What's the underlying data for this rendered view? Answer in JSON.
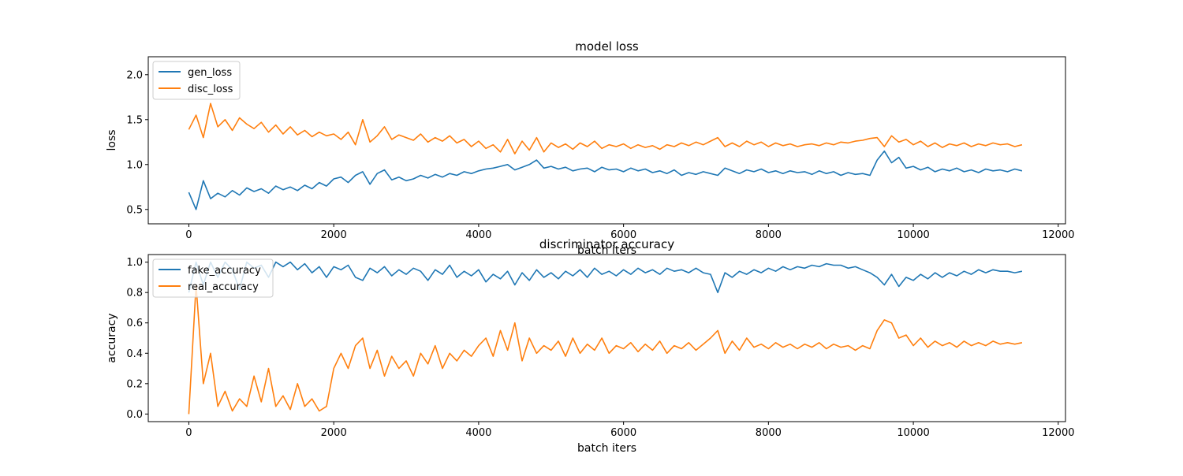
{
  "chart_data": [
    {
      "type": "line",
      "title": "model loss",
      "xlabel": "batch iters",
      "ylabel": "loss",
      "xlim": [
        -560,
        12100
      ],
      "ylim": [
        0.34,
        2.2
      ],
      "xticks": [
        0,
        2000,
        4000,
        6000,
        8000,
        10000,
        12000
      ],
      "yticks": [
        0.5,
        1.0,
        1.5,
        2.0
      ],
      "xtick_labels": [
        "0",
        "2000",
        "4000",
        "6000",
        "8000",
        "10000",
        "12000"
      ],
      "ytick_labels": [
        "0.5",
        "1.0",
        "1.5",
        "2.0"
      ],
      "grid": false,
      "legend": "upper left",
      "series": [
        {
          "name": "gen_loss",
          "color": "#1f77b4",
          "x": [
            0,
            100,
            200,
            300,
            400,
            500,
            600,
            700,
            800,
            900,
            1000,
            1100,
            1200,
            1300,
            1400,
            1500,
            1600,
            1700,
            1800,
            1900,
            2000,
            2100,
            2200,
            2300,
            2400,
            2500,
            2600,
            2700,
            2800,
            2900,
            3000,
            3100,
            3200,
            3300,
            3400,
            3500,
            3600,
            3700,
            3800,
            3900,
            4000,
            4100,
            4200,
            4300,
            4400,
            4500,
            4600,
            4700,
            4800,
            4900,
            5000,
            5100,
            5200,
            5300,
            5400,
            5500,
            5600,
            5700,
            5800,
            5900,
            6000,
            6100,
            6200,
            6300,
            6400,
            6500,
            6600,
            6700,
            6800,
            6900,
            7000,
            7100,
            7200,
            7300,
            7400,
            7500,
            7600,
            7700,
            7800,
            7900,
            8000,
            8100,
            8200,
            8300,
            8400,
            8500,
            8600,
            8700,
            8800,
            8900,
            9000,
            9100,
            9200,
            9300,
            9400,
            9500,
            9600,
            9700,
            9800,
            9900,
            10000,
            10100,
            10200,
            10300,
            10400,
            10500,
            10600,
            10700,
            10800,
            10900,
            11000,
            11100,
            11200,
            11300,
            11400,
            11500
          ],
          "y": [
            0.69,
            0.5,
            0.82,
            0.62,
            0.68,
            0.64,
            0.71,
            0.66,
            0.74,
            0.7,
            0.73,
            0.68,
            0.76,
            0.72,
            0.75,
            0.71,
            0.77,
            0.73,
            0.8,
            0.76,
            0.84,
            0.86,
            0.8,
            0.88,
            0.92,
            0.78,
            0.9,
            0.94,
            0.83,
            0.86,
            0.82,
            0.84,
            0.88,
            0.85,
            0.89,
            0.86,
            0.9,
            0.88,
            0.92,
            0.9,
            0.93,
            0.95,
            0.96,
            0.98,
            1.0,
            0.94,
            0.97,
            1.0,
            1.05,
            0.96,
            0.98,
            0.95,
            0.97,
            0.93,
            0.95,
            0.96,
            0.92,
            0.97,
            0.94,
            0.95,
            0.92,
            0.96,
            0.93,
            0.95,
            0.91,
            0.93,
            0.9,
            0.94,
            0.88,
            0.91,
            0.89,
            0.92,
            0.9,
            0.88,
            0.96,
            0.93,
            0.9,
            0.94,
            0.92,
            0.95,
            0.91,
            0.93,
            0.9,
            0.93,
            0.91,
            0.92,
            0.89,
            0.93,
            0.9,
            0.92,
            0.88,
            0.91,
            0.89,
            0.9,
            0.88,
            1.05,
            1.15,
            1.02,
            1.08,
            0.96,
            0.98,
            0.94,
            0.97,
            0.92,
            0.95,
            0.93,
            0.96,
            0.92,
            0.94,
            0.91,
            0.95,
            0.93,
            0.94,
            0.92,
            0.95,
            0.93
          ]
        },
        {
          "name": "disc_loss",
          "color": "#ff7f0e",
          "x": [
            0,
            100,
            200,
            300,
            400,
            500,
            600,
            700,
            800,
            900,
            1000,
            1100,
            1200,
            1300,
            1400,
            1500,
            1600,
            1700,
            1800,
            1900,
            2000,
            2100,
            2200,
            2300,
            2400,
            2500,
            2600,
            2700,
            2800,
            2900,
            3000,
            3100,
            3200,
            3300,
            3400,
            3500,
            3600,
            3700,
            3800,
            3900,
            4000,
            4100,
            4200,
            4300,
            4400,
            4500,
            4600,
            4700,
            4800,
            4900,
            5000,
            5100,
            5200,
            5300,
            5400,
            5500,
            5600,
            5700,
            5800,
            5900,
            6000,
            6100,
            6200,
            6300,
            6400,
            6500,
            6600,
            6700,
            6800,
            6900,
            7000,
            7100,
            7200,
            7300,
            7400,
            7500,
            7600,
            7700,
            7800,
            7900,
            8000,
            8100,
            8200,
            8300,
            8400,
            8500,
            8600,
            8700,
            8800,
            8900,
            9000,
            9100,
            9200,
            9300,
            9400,
            9500,
            9600,
            9700,
            9800,
            9900,
            10000,
            10100,
            10200,
            10300,
            10400,
            10500,
            10600,
            10700,
            10800,
            10900,
            11000,
            11100,
            11200,
            11300,
            11400,
            11500
          ],
          "y": [
            1.39,
            1.55,
            1.3,
            1.68,
            1.42,
            1.5,
            1.38,
            1.52,
            1.45,
            1.4,
            1.47,
            1.36,
            1.44,
            1.34,
            1.42,
            1.33,
            1.38,
            1.31,
            1.36,
            1.32,
            1.34,
            1.28,
            1.36,
            1.22,
            1.5,
            1.25,
            1.32,
            1.42,
            1.28,
            1.33,
            1.3,
            1.27,
            1.34,
            1.25,
            1.3,
            1.26,
            1.32,
            1.24,
            1.28,
            1.2,
            1.26,
            1.18,
            1.22,
            1.14,
            1.28,
            1.12,
            1.26,
            1.16,
            1.3,
            1.14,
            1.24,
            1.19,
            1.23,
            1.17,
            1.24,
            1.2,
            1.26,
            1.18,
            1.22,
            1.2,
            1.23,
            1.18,
            1.22,
            1.19,
            1.21,
            1.17,
            1.22,
            1.2,
            1.24,
            1.21,
            1.25,
            1.22,
            1.26,
            1.3,
            1.2,
            1.24,
            1.2,
            1.26,
            1.22,
            1.25,
            1.2,
            1.24,
            1.21,
            1.23,
            1.2,
            1.22,
            1.23,
            1.21,
            1.24,
            1.22,
            1.25,
            1.24,
            1.26,
            1.27,
            1.29,
            1.3,
            1.2,
            1.32,
            1.25,
            1.28,
            1.22,
            1.26,
            1.2,
            1.24,
            1.19,
            1.23,
            1.21,
            1.24,
            1.2,
            1.23,
            1.21,
            1.24,
            1.22,
            1.23,
            1.2,
            1.22
          ]
        }
      ]
    },
    {
      "type": "line",
      "title": "discriminator accuracy",
      "xlabel": "batch iters",
      "ylabel": "accuracy",
      "xlim": [
        -560,
        12100
      ],
      "ylim": [
        -0.05,
        1.05
      ],
      "xticks": [
        0,
        2000,
        4000,
        6000,
        8000,
        10000,
        12000
      ],
      "yticks": [
        0.0,
        0.2,
        0.4,
        0.6,
        0.8,
        1.0
      ],
      "xtick_labels": [
        "0",
        "2000",
        "4000",
        "6000",
        "8000",
        "10000",
        "12000"
      ],
      "ytick_labels": [
        "0.0",
        "0.2",
        "0.4",
        "0.6",
        "0.8",
        "1.0"
      ],
      "grid": false,
      "legend": "upper left",
      "series": [
        {
          "name": "fake_accuracy",
          "color": "#1f77b4",
          "x": [
            0,
            100,
            200,
            300,
            400,
            500,
            600,
            700,
            800,
            900,
            1000,
            1100,
            1200,
            1300,
            1400,
            1500,
            1600,
            1700,
            1800,
            1900,
            2000,
            2100,
            2200,
            2300,
            2400,
            2500,
            2600,
            2700,
            2800,
            2900,
            3000,
            3100,
            3200,
            3300,
            3400,
            3500,
            3600,
            3700,
            3800,
            3900,
            4000,
            4100,
            4200,
            4300,
            4400,
            4500,
            4600,
            4700,
            4800,
            4900,
            5000,
            5100,
            5200,
            5300,
            5400,
            5500,
            5600,
            5700,
            5800,
            5900,
            6000,
            6100,
            6200,
            6300,
            6400,
            6500,
            6600,
            6700,
            6800,
            6900,
            7000,
            7100,
            7200,
            7300,
            7400,
            7500,
            7600,
            7700,
            7800,
            7900,
            8000,
            8100,
            8200,
            8300,
            8400,
            8500,
            8600,
            8700,
            8800,
            8900,
            9000,
            9100,
            9200,
            9300,
            9400,
            9500,
            9600,
            9700,
            9800,
            9900,
            10000,
            10100,
            10200,
            10300,
            10400,
            10500,
            10600,
            10700,
            10800,
            10900,
            11000,
            11100,
            11200,
            11300,
            11400,
            11500
          ],
          "y": [
            0.8,
            1.0,
            0.85,
            1.0,
            0.9,
            1.0,
            0.95,
            0.82,
            1.0,
            0.96,
            0.98,
            0.9,
            1.0,
            0.97,
            1.0,
            0.95,
            0.99,
            0.93,
            0.97,
            0.9,
            0.97,
            0.95,
            0.98,
            0.9,
            0.88,
            0.96,
            0.93,
            0.97,
            0.91,
            0.95,
            0.92,
            0.96,
            0.94,
            0.88,
            0.95,
            0.92,
            0.98,
            0.9,
            0.94,
            0.91,
            0.95,
            0.87,
            0.92,
            0.89,
            0.94,
            0.85,
            0.93,
            0.88,
            0.95,
            0.9,
            0.93,
            0.89,
            0.94,
            0.91,
            0.95,
            0.9,
            0.96,
            0.92,
            0.94,
            0.91,
            0.95,
            0.92,
            0.96,
            0.93,
            0.95,
            0.92,
            0.96,
            0.94,
            0.95,
            0.93,
            0.96,
            0.93,
            0.92,
            0.8,
            0.93,
            0.9,
            0.94,
            0.92,
            0.95,
            0.93,
            0.96,
            0.94,
            0.97,
            0.95,
            0.97,
            0.96,
            0.98,
            0.97,
            0.99,
            0.98,
            0.98,
            0.96,
            0.97,
            0.95,
            0.93,
            0.9,
            0.85,
            0.92,
            0.84,
            0.9,
            0.88,
            0.92,
            0.89,
            0.93,
            0.9,
            0.93,
            0.91,
            0.94,
            0.92,
            0.95,
            0.93,
            0.95,
            0.94,
            0.94,
            0.93,
            0.94
          ]
        },
        {
          "name": "real_accuracy",
          "color": "#ff7f0e",
          "x": [
            0,
            100,
            200,
            300,
            400,
            500,
            600,
            700,
            800,
            900,
            1000,
            1100,
            1200,
            1300,
            1400,
            1500,
            1600,
            1700,
            1800,
            1900,
            2000,
            2100,
            2200,
            2300,
            2400,
            2500,
            2600,
            2700,
            2800,
            2900,
            3000,
            3100,
            3200,
            3300,
            3400,
            3500,
            3600,
            3700,
            3800,
            3900,
            4000,
            4100,
            4200,
            4300,
            4400,
            4500,
            4600,
            4700,
            4800,
            4900,
            5000,
            5100,
            5200,
            5300,
            5400,
            5500,
            5600,
            5700,
            5800,
            5900,
            6000,
            6100,
            6200,
            6300,
            6400,
            6500,
            6600,
            6700,
            6800,
            6900,
            7000,
            7100,
            7200,
            7300,
            7400,
            7500,
            7600,
            7700,
            7800,
            7900,
            8000,
            8100,
            8200,
            8300,
            8400,
            8500,
            8600,
            8700,
            8800,
            8900,
            9000,
            9100,
            9200,
            9300,
            9400,
            9500,
            9600,
            9700,
            9800,
            9900,
            10000,
            10100,
            10200,
            10300,
            10400,
            10500,
            10600,
            10700,
            10800,
            10900,
            11000,
            11100,
            11200,
            11300,
            11400,
            11500
          ],
          "y": [
            0.0,
            0.85,
            0.2,
            0.4,
            0.05,
            0.15,
            0.02,
            0.1,
            0.05,
            0.25,
            0.08,
            0.3,
            0.05,
            0.12,
            0.03,
            0.2,
            0.05,
            0.1,
            0.02,
            0.05,
            0.3,
            0.4,
            0.3,
            0.45,
            0.5,
            0.3,
            0.42,
            0.25,
            0.38,
            0.3,
            0.35,
            0.25,
            0.4,
            0.33,
            0.45,
            0.3,
            0.4,
            0.35,
            0.42,
            0.38,
            0.45,
            0.5,
            0.38,
            0.55,
            0.42,
            0.6,
            0.35,
            0.5,
            0.4,
            0.45,
            0.42,
            0.48,
            0.38,
            0.5,
            0.4,
            0.46,
            0.42,
            0.5,
            0.4,
            0.45,
            0.43,
            0.47,
            0.41,
            0.46,
            0.42,
            0.48,
            0.4,
            0.45,
            0.43,
            0.47,
            0.42,
            0.46,
            0.5,
            0.55,
            0.4,
            0.48,
            0.42,
            0.5,
            0.44,
            0.46,
            0.43,
            0.47,
            0.44,
            0.46,
            0.43,
            0.46,
            0.44,
            0.47,
            0.43,
            0.46,
            0.44,
            0.45,
            0.42,
            0.45,
            0.43,
            0.55,
            0.62,
            0.6,
            0.5,
            0.52,
            0.45,
            0.5,
            0.44,
            0.48,
            0.45,
            0.47,
            0.44,
            0.48,
            0.45,
            0.47,
            0.45,
            0.48,
            0.46,
            0.47,
            0.46,
            0.47
          ]
        }
      ]
    }
  ]
}
